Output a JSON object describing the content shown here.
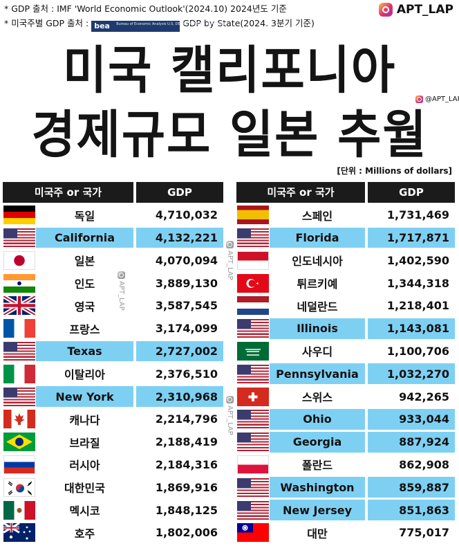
{
  "sources": {
    "line1": "* GDP 출처 : IMF 'World Economic Outlook'(2024.10) 2024년도 기준",
    "line2_prefix": "* 미국주별 GDP 출처 :",
    "bea_text": "bea",
    "bea_small": "Bureau of Economic Analysis U.S. DEPARTMENT OF COMMERCE",
    "line2_suffix": "GDP by State(2024. 3분기 기준)"
  },
  "brand": {
    "handle": "APT_LAP",
    "small_handle": "@APT_LAP",
    "watermark": "APT_LAP"
  },
  "title": {
    "line1": "미국 캘리포니아",
    "line2": "경제규모 일본 추월"
  },
  "unit_label": "[단위 : Millions of dollars]",
  "chart_data": {
    "type": "table",
    "columns": [
      "미국주 or 국가",
      "GDP"
    ],
    "highlight_color": "#7ed0f3",
    "tables": [
      {
        "rows": [
          {
            "name": "독일",
            "gdp": "4,710,032",
            "flag": "germany",
            "us_state": false
          },
          {
            "name": "California",
            "gdp": "4,132,221",
            "flag": "usa",
            "us_state": true
          },
          {
            "name": "일본",
            "gdp": "4,070,094",
            "flag": "japan",
            "us_state": false
          },
          {
            "name": "인도",
            "gdp": "3,889,130",
            "flag": "india",
            "us_state": false
          },
          {
            "name": "영국",
            "gdp": "3,587,545",
            "flag": "uk",
            "us_state": false
          },
          {
            "name": "프랑스",
            "gdp": "3,174,099",
            "flag": "france",
            "us_state": false
          },
          {
            "name": "Texas",
            "gdp": "2,727,002",
            "flag": "usa",
            "us_state": true
          },
          {
            "name": "이탈리아",
            "gdp": "2,376,510",
            "flag": "italy",
            "us_state": false
          },
          {
            "name": "New York",
            "gdp": "2,310,968",
            "flag": "usa",
            "us_state": true
          },
          {
            "name": "캐나다",
            "gdp": "2,214,796",
            "flag": "canada",
            "us_state": false
          },
          {
            "name": "브라질",
            "gdp": "2,188,419",
            "flag": "brazil",
            "us_state": false
          },
          {
            "name": "러시아",
            "gdp": "2,184,316",
            "flag": "russia",
            "us_state": false
          },
          {
            "name": "대한민국",
            "gdp": "1,869,916",
            "flag": "korea",
            "us_state": false
          },
          {
            "name": "멕시코",
            "gdp": "1,848,125",
            "flag": "mexico",
            "us_state": false
          },
          {
            "name": "호주",
            "gdp": "1,802,006",
            "flag": "australia",
            "us_state": false
          }
        ]
      },
      {
        "rows": [
          {
            "name": "스페인",
            "gdp": "1,731,469",
            "flag": "spain",
            "us_state": false
          },
          {
            "name": "Florida",
            "gdp": "1,717,871",
            "flag": "usa",
            "us_state": true
          },
          {
            "name": "인도네시아",
            "gdp": "1,402,590",
            "flag": "indonesia",
            "us_state": false
          },
          {
            "name": "튀르키예",
            "gdp": "1,344,318",
            "flag": "turkey",
            "us_state": false
          },
          {
            "name": "네덜란드",
            "gdp": "1,218,401",
            "flag": "netherlands",
            "us_state": false
          },
          {
            "name": "Illinois",
            "gdp": "1,143,081",
            "flag": "usa",
            "us_state": true
          },
          {
            "name": "사우디",
            "gdp": "1,100,706",
            "flag": "saudi",
            "us_state": false
          },
          {
            "name": "Pennsylvania",
            "gdp": "1,032,270",
            "flag": "usa",
            "us_state": true
          },
          {
            "name": "스위스",
            "gdp": "942,265",
            "flag": "switzerland",
            "us_state": false
          },
          {
            "name": "Ohio",
            "gdp": "933,044",
            "flag": "usa",
            "us_state": true
          },
          {
            "name": "Georgia",
            "gdp": "887,924",
            "flag": "usa",
            "us_state": true
          },
          {
            "name": "폴란드",
            "gdp": "862,908",
            "flag": "poland",
            "us_state": false
          },
          {
            "name": "Washington",
            "gdp": "859,887",
            "flag": "usa",
            "us_state": true
          },
          {
            "name": "New Jersey",
            "gdp": "851,863",
            "flag": "usa",
            "us_state": true
          },
          {
            "name": "대만",
            "gdp": "775,017",
            "flag": "taiwan",
            "us_state": false
          }
        ]
      }
    ]
  }
}
